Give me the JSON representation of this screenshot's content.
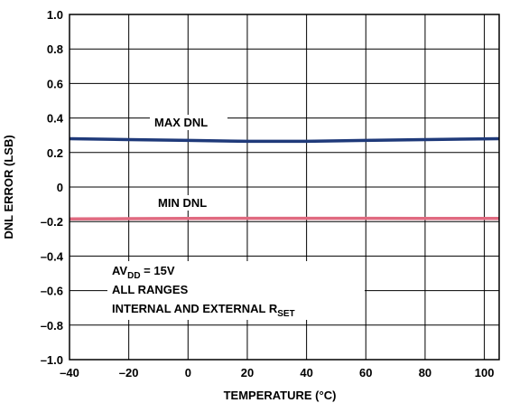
{
  "chart_data": {
    "type": "line",
    "title": "",
    "xlabel": "TEMPERATURE (°C)",
    "ylabel": "DNL ERROR (LSB)",
    "xlim": [
      -40,
      105
    ],
    "ylim": [
      -1.0,
      1.0
    ],
    "x_ticks": [
      -40,
      -20,
      0,
      20,
      40,
      60,
      80,
      100
    ],
    "x_tick_labels": [
      "–40",
      "–20",
      "0",
      "20",
      "40",
      "60",
      "80",
      "100"
    ],
    "y_ticks": [
      1.0,
      0.8,
      0.6,
      0.4,
      0.2,
      0,
      -0.2,
      -0.4,
      -0.6,
      -0.8,
      -1.0
    ],
    "y_tick_labels": [
      "1.0",
      "0.8",
      "0.6",
      "0.4",
      "0.2",
      "0",
      "–0.2",
      "–0.4",
      "–0.6",
      "–0.8",
      "–1.0"
    ],
    "grid": true,
    "series": [
      {
        "name": "MAX DNL",
        "color": "#1f3a7a",
        "x": [
          -40,
          -20,
          0,
          20,
          40,
          60,
          80,
          105
        ],
        "y": [
          0.28,
          0.275,
          0.27,
          0.265,
          0.265,
          0.27,
          0.275,
          0.28
        ]
      },
      {
        "name": "MIN DNL",
        "color": "#e06a80",
        "x": [
          -40,
          -20,
          0,
          20,
          40,
          60,
          80,
          105
        ],
        "y": [
          -0.185,
          -0.183,
          -0.182,
          -0.181,
          -0.181,
          -0.181,
          -0.182,
          -0.182
        ]
      }
    ],
    "annotation": {
      "line1_main": "AV",
      "line1_sub": "DD",
      "line1_rest": " = 15V",
      "line2": "ALL RANGES",
      "line3_main": "INTERNAL AND EXTERNAL R",
      "line3_sub": "SET"
    }
  }
}
